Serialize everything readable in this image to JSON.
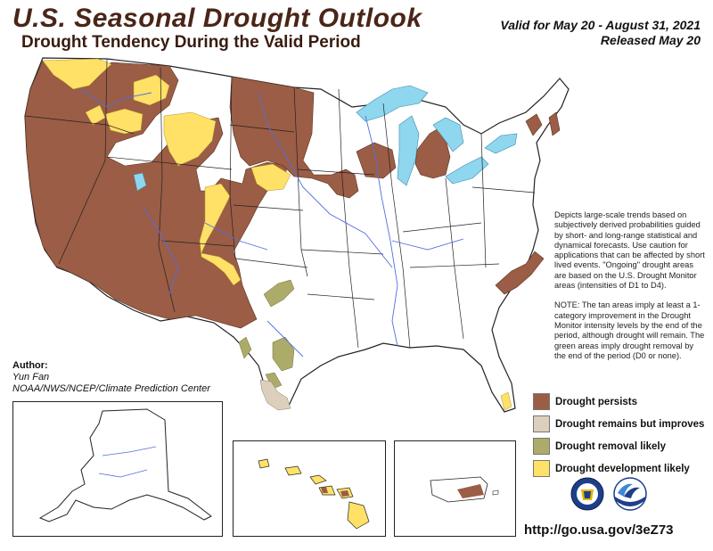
{
  "header": {
    "title": "U.S. Seasonal Drought Outlook",
    "subtitle": "Drought Tendency During the Valid Period",
    "valid_line": "Valid for May 20 - August 31, 2021",
    "released_line": "Released May 20"
  },
  "description": {
    "para1": "Depicts large-scale trends based on subjectively derived probabilities guided by short- and long-range statistical and dynamical forecasts. Use caution for applications that can be affected by short lived events. \"Ongoing\" drought areas are based on the U.S. Drought Monitor areas (intensities of D1 to D4).",
    "para2": "NOTE: The tan areas imply at least a 1-category improvement in the Drought Monitor intensity levels by the end of the period, although drought will remain. The green areas imply drought removal by the end of the period (D0 or none)."
  },
  "author": {
    "heading": "Author:",
    "name": "Yun Fan",
    "org": "NOAA/NWS/NCEP/Climate Prediction Center"
  },
  "legend": [
    {
      "label": "Drought persists",
      "color": "#9b5d45"
    },
    {
      "label": "Drought remains but improves",
      "color": "#dccfbc"
    },
    {
      "label": "Drought removal likely",
      "color": "#adab6a"
    },
    {
      "label": "Drought development likely",
      "color": "#ffe167"
    }
  ],
  "colors": {
    "persists": "#9b5d45",
    "improves": "#dccfbc",
    "removal": "#adab6a",
    "development": "#ffe167",
    "water": "#8fd6ef",
    "rivers": "#4f6fe0"
  },
  "logos": [
    "noaa-cpc-seal-icon",
    "noaa-logo-icon"
  ],
  "url": "http://go.usa.gov/3eZ73"
}
